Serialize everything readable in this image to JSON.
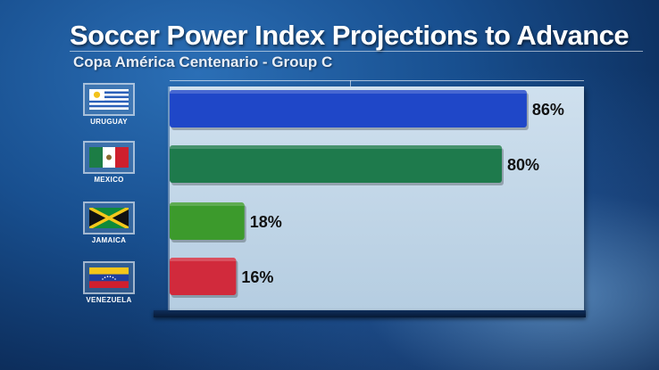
{
  "title": "Soccer Power Index Projections to Advance",
  "subtitle": "Copa América Centenario - Group C",
  "chart_data": {
    "type": "bar",
    "orientation": "horizontal",
    "title": "Soccer Power Index Projections to Advance",
    "subtitle": "Copa América Centenario - Group C",
    "categories": [
      "URUGUAY",
      "MEXICO",
      "JAMAICA",
      "VENEZUELA"
    ],
    "values": [
      86,
      80,
      18,
      16
    ],
    "value_labels": [
      "86%",
      "80%",
      "18%",
      "16%"
    ],
    "xlim": [
      0,
      100
    ],
    "grid": false,
    "legend": "none",
    "bar_colors": [
      "#1f47c8",
      "#1e7a4c",
      "#3c9a2c",
      "#d12a3c"
    ]
  },
  "flags": [
    {
      "country": "URUGUAY",
      "icon": "uruguay-flag-icon"
    },
    {
      "country": "MEXICO",
      "icon": "mexico-flag-icon"
    },
    {
      "country": "JAMAICA",
      "icon": "jamaica-flag-icon"
    },
    {
      "country": "VENEZUELA",
      "icon": "venezuela-flag-icon"
    }
  ],
  "colors": {
    "panel": "#c3d7e8",
    "text_dark": "#111111",
    "background": "#184f8f"
  }
}
